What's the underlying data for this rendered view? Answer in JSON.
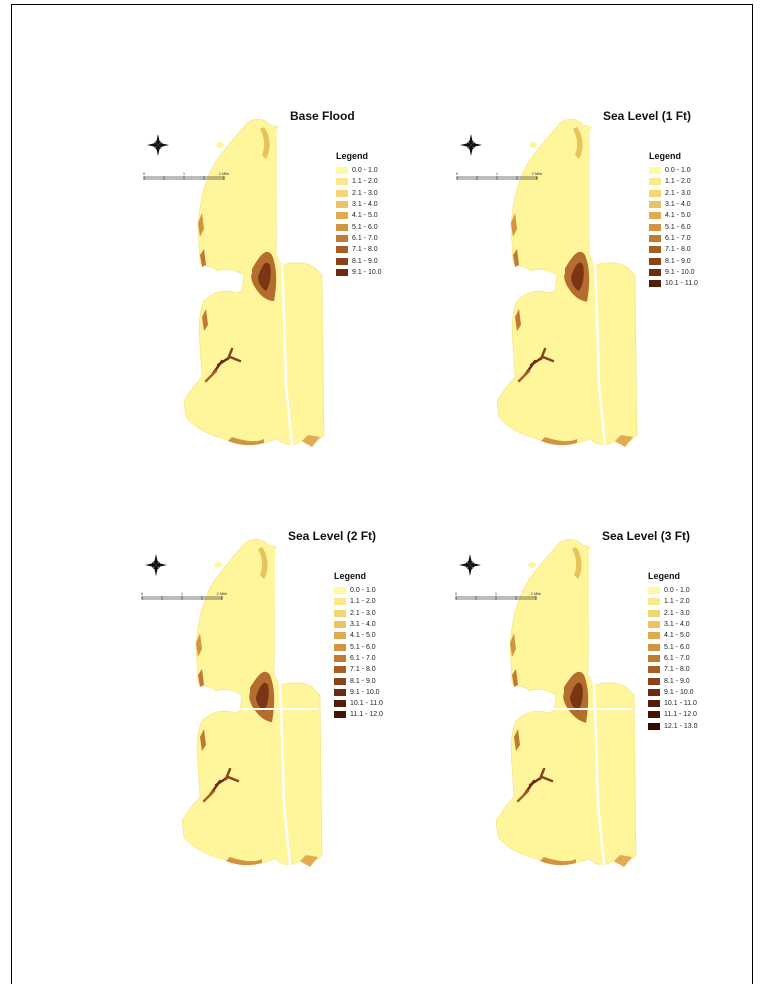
{
  "scale_labels": [
    "0",
    "1",
    "2 Mile"
  ],
  "colors": [
    "#fff9a6",
    "#fbe98d",
    "#f4d775",
    "#ecc263",
    "#e2ab52",
    "#d39442",
    "#c07a34",
    "#a65e27",
    "#88431b",
    "#6c2a10",
    "#561c0a",
    "#451206",
    "#350b03"
  ],
  "maps": [
    {
      "title": "Base Flood",
      "legend_title": "Legend",
      "legend": [
        "0.0 - 1.0",
        "1.1 - 2.0",
        "2.1 - 3.0",
        "3.1 - 4.0",
        "4.1 - 5.0",
        "5.1 - 6.0",
        "6.1 - 7.0",
        "7.1 - 8.0",
        "8.1 - 9.0",
        "9.1 - 10.0"
      ]
    },
    {
      "title": "Sea Level (1 Ft)",
      "legend_title": "Legend",
      "legend": [
        "0.0 - 1.0",
        "1.1 - 2.0",
        "2.1 - 3.0",
        "3.1 - 4.0",
        "4.1 - 5.0",
        "5.1 - 6.0",
        "6.1 - 7.0",
        "7.1 - 8.0",
        "8.1 - 9.0",
        "9.1 - 10.0",
        "10.1 - 11.0"
      ]
    },
    {
      "title": "Sea Level (2 Ft)",
      "legend_title": "Legend",
      "legend": [
        "0.0 - 1.0",
        "1.1 - 2.0",
        "2.1 - 3.0",
        "3.1 - 4.0",
        "4.1 - 5.0",
        "5.1 - 6.0",
        "6.1 - 7.0",
        "7.1 - 8.0",
        "8.1 - 9.0",
        "9.1 - 10.0",
        "10.1 - 11.0",
        "11.1 - 12.0"
      ]
    },
    {
      "title": "Sea Level (3 Ft)",
      "legend_title": "Legend",
      "legend": [
        "0.0 - 1.0",
        "1.1 - 2.0",
        "2.1 - 3.0",
        "3.1 - 4.0",
        "4.1 - 5.0",
        "5.1 - 6.0",
        "6.1 - 7.0",
        "7.1 - 8.0",
        "8.1 - 9.0",
        "9.1 - 10.0",
        "10.1 - 11.0",
        "11.1 - 12.0",
        "12.1 - 13.0"
      ]
    }
  ]
}
